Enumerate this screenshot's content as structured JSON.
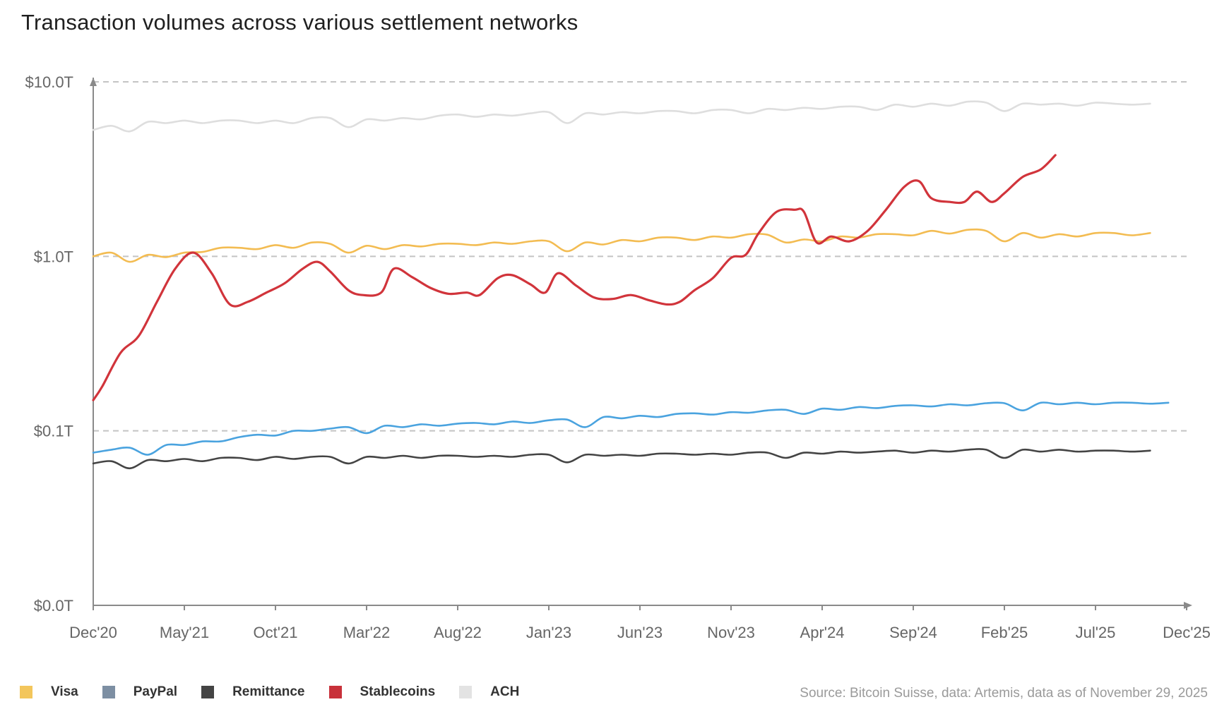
{
  "chart_data": {
    "type": "line",
    "title": "Transaction volumes across various settlement networks",
    "scale": "log",
    "ylim_trillions": [
      0.01,
      10
    ],
    "y_ticks": [
      {
        "value": 10,
        "label": "$10.0T"
      },
      {
        "value": 1,
        "label": "$1.0T"
      },
      {
        "value": 0.1,
        "label": "$0.1T"
      },
      {
        "value": 0.01,
        "label": "$0.0T"
      }
    ],
    "x_ticks": [
      "Dec'20",
      "May'21",
      "Oct'21",
      "Mar'22",
      "Aug'22",
      "Jan'23",
      "Jun'23",
      "Nov'23",
      "Apr'24",
      "Sep'24",
      "Feb'25",
      "Jul'25",
      "Dec'25"
    ],
    "x_domain_months": [
      0,
      60
    ],
    "series": [
      {
        "name": "ACH",
        "color": "#dedede",
        "points": [
          [
            0,
            5.3
          ],
          [
            1,
            5.6
          ],
          [
            2,
            5.2
          ],
          [
            3,
            5.9
          ],
          [
            4,
            5.8
          ],
          [
            5,
            6.0
          ],
          [
            6,
            5.8
          ],
          [
            7,
            6.0
          ],
          [
            8,
            6.0
          ],
          [
            9,
            5.8
          ],
          [
            10,
            6.0
          ],
          [
            11,
            5.8
          ],
          [
            12,
            6.2
          ],
          [
            13,
            6.2
          ],
          [
            14,
            5.5
          ],
          [
            15,
            6.1
          ],
          [
            16,
            6.0
          ],
          [
            17,
            6.2
          ],
          [
            18,
            6.1
          ],
          [
            19,
            6.4
          ],
          [
            20,
            6.5
          ],
          [
            21,
            6.3
          ],
          [
            22,
            6.5
          ],
          [
            23,
            6.4
          ],
          [
            24,
            6.6
          ],
          [
            25,
            6.7
          ],
          [
            26,
            5.8
          ],
          [
            27,
            6.6
          ],
          [
            28,
            6.5
          ],
          [
            29,
            6.7
          ],
          [
            30,
            6.6
          ],
          [
            31,
            6.8
          ],
          [
            32,
            6.8
          ],
          [
            33,
            6.6
          ],
          [
            34,
            6.9
          ],
          [
            35,
            6.9
          ],
          [
            36,
            6.6
          ],
          [
            37,
            7.0
          ],
          [
            38,
            6.9
          ],
          [
            39,
            7.1
          ],
          [
            40,
            7.0
          ],
          [
            41,
            7.2
          ],
          [
            42,
            7.2
          ],
          [
            43,
            6.9
          ],
          [
            44,
            7.4
          ],
          [
            45,
            7.2
          ],
          [
            46,
            7.5
          ],
          [
            47,
            7.3
          ],
          [
            48,
            7.7
          ],
          [
            49,
            7.6
          ],
          [
            50,
            6.8
          ],
          [
            51,
            7.5
          ],
          [
            52,
            7.4
          ],
          [
            53,
            7.5
          ],
          [
            54,
            7.3
          ],
          [
            55,
            7.6
          ],
          [
            56,
            7.5
          ],
          [
            57,
            7.4
          ],
          [
            58,
            7.5
          ]
        ]
      },
      {
        "name": "Visa",
        "color": "#f3bc52",
        "points": [
          [
            0,
            1.0
          ],
          [
            1,
            1.05
          ],
          [
            2,
            0.93
          ],
          [
            3,
            1.02
          ],
          [
            4,
            0.99
          ],
          [
            5,
            1.05
          ],
          [
            6,
            1.06
          ],
          [
            7,
            1.12
          ],
          [
            8,
            1.12
          ],
          [
            9,
            1.1
          ],
          [
            10,
            1.16
          ],
          [
            11,
            1.12
          ],
          [
            12,
            1.2
          ],
          [
            13,
            1.18
          ],
          [
            14,
            1.05
          ],
          [
            15,
            1.15
          ],
          [
            16,
            1.1
          ],
          [
            17,
            1.16
          ],
          [
            18,
            1.14
          ],
          [
            19,
            1.18
          ],
          [
            20,
            1.18
          ],
          [
            21,
            1.16
          ],
          [
            22,
            1.2
          ],
          [
            23,
            1.18
          ],
          [
            24,
            1.22
          ],
          [
            25,
            1.22
          ],
          [
            26,
            1.07
          ],
          [
            27,
            1.2
          ],
          [
            28,
            1.17
          ],
          [
            29,
            1.24
          ],
          [
            30,
            1.22
          ],
          [
            31,
            1.28
          ],
          [
            32,
            1.28
          ],
          [
            33,
            1.24
          ],
          [
            34,
            1.3
          ],
          [
            35,
            1.28
          ],
          [
            36,
            1.34
          ],
          [
            37,
            1.33
          ],
          [
            38,
            1.2
          ],
          [
            39,
            1.25
          ],
          [
            40,
            1.22
          ],
          [
            41,
            1.3
          ],
          [
            42,
            1.28
          ],
          [
            43,
            1.34
          ],
          [
            44,
            1.34
          ],
          [
            45,
            1.32
          ],
          [
            46,
            1.4
          ],
          [
            47,
            1.35
          ],
          [
            48,
            1.42
          ],
          [
            49,
            1.4
          ],
          [
            50,
            1.22
          ],
          [
            51,
            1.36
          ],
          [
            52,
            1.28
          ],
          [
            53,
            1.34
          ],
          [
            54,
            1.3
          ],
          [
            55,
            1.36
          ],
          [
            56,
            1.36
          ],
          [
            57,
            1.32
          ],
          [
            58,
            1.36
          ]
        ]
      },
      {
        "name": "PayPal",
        "color": "#4aa3df",
        "points": [
          [
            0,
            0.075
          ],
          [
            1,
            0.078
          ],
          [
            2,
            0.08
          ],
          [
            3,
            0.073
          ],
          [
            4,
            0.083
          ],
          [
            5,
            0.083
          ],
          [
            6,
            0.087
          ],
          [
            7,
            0.087
          ],
          [
            8,
            0.092
          ],
          [
            9,
            0.095
          ],
          [
            10,
            0.094
          ],
          [
            11,
            0.1
          ],
          [
            12,
            0.1
          ],
          [
            13,
            0.103
          ],
          [
            14,
            0.105
          ],
          [
            15,
            0.097
          ],
          [
            16,
            0.107
          ],
          [
            17,
            0.105
          ],
          [
            18,
            0.109
          ],
          [
            19,
            0.107
          ],
          [
            20,
            0.11
          ],
          [
            21,
            0.111
          ],
          [
            22,
            0.109
          ],
          [
            23,
            0.113
          ],
          [
            24,
            0.111
          ],
          [
            25,
            0.115
          ],
          [
            26,
            0.116
          ],
          [
            27,
            0.105
          ],
          [
            28,
            0.12
          ],
          [
            29,
            0.118
          ],
          [
            30,
            0.122
          ],
          [
            31,
            0.12
          ],
          [
            32,
            0.125
          ],
          [
            33,
            0.126
          ],
          [
            34,
            0.124
          ],
          [
            35,
            0.128
          ],
          [
            36,
            0.127
          ],
          [
            37,
            0.131
          ],
          [
            38,
            0.132
          ],
          [
            39,
            0.125
          ],
          [
            40,
            0.134
          ],
          [
            41,
            0.132
          ],
          [
            42,
            0.137
          ],
          [
            43,
            0.135
          ],
          [
            44,
            0.139
          ],
          [
            45,
            0.14
          ],
          [
            46,
            0.138
          ],
          [
            47,
            0.142
          ],
          [
            48,
            0.14
          ],
          [
            49,
            0.144
          ],
          [
            50,
            0.144
          ],
          [
            51,
            0.131
          ],
          [
            52,
            0.145
          ],
          [
            53,
            0.142
          ],
          [
            54,
            0.145
          ],
          [
            55,
            0.142
          ],
          [
            56,
            0.145
          ],
          [
            57,
            0.145
          ],
          [
            58,
            0.143
          ],
          [
            59,
            0.145
          ]
        ]
      },
      {
        "name": "Remittance",
        "color": "#444444",
        "points": [
          [
            0,
            0.065
          ],
          [
            1,
            0.067
          ],
          [
            2,
            0.061
          ],
          [
            3,
            0.068
          ],
          [
            4,
            0.067
          ],
          [
            5,
            0.069
          ],
          [
            6,
            0.067
          ],
          [
            7,
            0.07
          ],
          [
            8,
            0.07
          ],
          [
            9,
            0.068
          ],
          [
            10,
            0.071
          ],
          [
            11,
            0.069
          ],
          [
            12,
            0.071
          ],
          [
            13,
            0.071
          ],
          [
            14,
            0.065
          ],
          [
            15,
            0.071
          ],
          [
            16,
            0.07
          ],
          [
            17,
            0.072
          ],
          [
            18,
            0.07
          ],
          [
            19,
            0.072
          ],
          [
            20,
            0.072
          ],
          [
            21,
            0.071
          ],
          [
            22,
            0.072
          ],
          [
            23,
            0.071
          ],
          [
            24,
            0.073
          ],
          [
            25,
            0.073
          ],
          [
            26,
            0.066
          ],
          [
            27,
            0.073
          ],
          [
            28,
            0.072
          ],
          [
            29,
            0.073
          ],
          [
            30,
            0.072
          ],
          [
            31,
            0.074
          ],
          [
            32,
            0.074
          ],
          [
            33,
            0.073
          ],
          [
            34,
            0.074
          ],
          [
            35,
            0.073
          ],
          [
            36,
            0.075
          ],
          [
            37,
            0.075
          ],
          [
            38,
            0.07
          ],
          [
            39,
            0.075
          ],
          [
            40,
            0.074
          ],
          [
            41,
            0.076
          ],
          [
            42,
            0.075
          ],
          [
            43,
            0.076
          ],
          [
            44,
            0.077
          ],
          [
            45,
            0.075
          ],
          [
            46,
            0.077
          ],
          [
            47,
            0.076
          ],
          [
            48,
            0.078
          ],
          [
            49,
            0.078
          ],
          [
            50,
            0.07
          ],
          [
            51,
            0.078
          ],
          [
            52,
            0.076
          ],
          [
            53,
            0.078
          ],
          [
            54,
            0.076
          ],
          [
            55,
            0.077
          ],
          [
            56,
            0.077
          ],
          [
            57,
            0.076
          ],
          [
            58,
            0.077
          ]
        ]
      },
      {
        "name": "Stablecoins",
        "color": "#d1343b",
        "points": [
          [
            0,
            0.15
          ],
          [
            0.5,
            0.18
          ],
          [
            1.5,
            0.28
          ],
          [
            2.5,
            0.35
          ],
          [
            3.5,
            0.55
          ],
          [
            4.5,
            0.85
          ],
          [
            5.5,
            1.05
          ],
          [
            6.5,
            0.8
          ],
          [
            7.5,
            0.53
          ],
          [
            8.5,
            0.55
          ],
          [
            9.5,
            0.62
          ],
          [
            10.5,
            0.7
          ],
          [
            11.5,
            0.85
          ],
          [
            12.3,
            0.93
          ],
          [
            13,
            0.82
          ],
          [
            14,
            0.64
          ],
          [
            14.8,
            0.6
          ],
          [
            15.8,
            0.62
          ],
          [
            16.5,
            0.85
          ],
          [
            17.5,
            0.76
          ],
          [
            18.5,
            0.66
          ],
          [
            19.5,
            0.61
          ],
          [
            20.5,
            0.62
          ],
          [
            21.2,
            0.6
          ],
          [
            22.2,
            0.75
          ],
          [
            23,
            0.78
          ],
          [
            24,
            0.69
          ],
          [
            24.8,
            0.62
          ],
          [
            25.5,
            0.8
          ],
          [
            26.5,
            0.68
          ],
          [
            27.5,
            0.58
          ],
          [
            28.5,
            0.57
          ],
          [
            29.5,
            0.6
          ],
          [
            30.5,
            0.56
          ],
          [
            31.5,
            0.53
          ],
          [
            32.2,
            0.55
          ],
          [
            33,
            0.64
          ],
          [
            34,
            0.75
          ],
          [
            35,
            0.98
          ],
          [
            35.8,
            1.02
          ],
          [
            36.5,
            1.35
          ],
          [
            37.5,
            1.8
          ],
          [
            38.5,
            1.85
          ],
          [
            39,
            1.8
          ],
          [
            39.7,
            1.2
          ],
          [
            40.5,
            1.3
          ],
          [
            41.5,
            1.22
          ],
          [
            42.5,
            1.4
          ],
          [
            43.5,
            1.85
          ],
          [
            44.5,
            2.5
          ],
          [
            45.3,
            2.7
          ],
          [
            46,
            2.15
          ],
          [
            47,
            2.05
          ],
          [
            47.8,
            2.05
          ],
          [
            48.5,
            2.35
          ],
          [
            49.3,
            2.05
          ],
          [
            50,
            2.3
          ],
          [
            51,
            2.85
          ],
          [
            52,
            3.15
          ],
          [
            52.8,
            3.8
          ]
        ]
      }
    ],
    "source": "Source: Bitcoin Suisse, data: Artemis, data as of November 29, 2025"
  },
  "legend": [
    {
      "label": "Visa",
      "color": "#f3c65c"
    },
    {
      "label": "PayPal",
      "color": "#7d8fa3"
    },
    {
      "label": "Remittance",
      "color": "#444444"
    },
    {
      "label": "Stablecoins",
      "color": "#c8313a"
    },
    {
      "label": "ACH",
      "color": "#e3e3e3"
    }
  ],
  "axis_color": "#8a8a8a",
  "grid_color": "#c4c4c4"
}
